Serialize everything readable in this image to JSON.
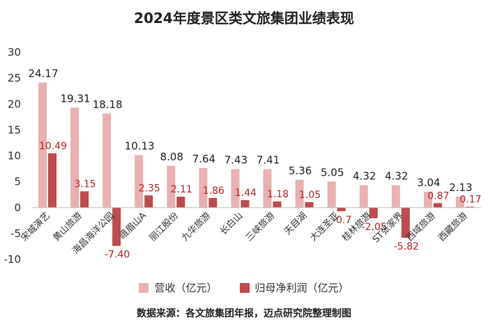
{
  "chart_data": {
    "type": "bar",
    "title": "2024年度景区类文旅集团业绩表现",
    "categories": [
      "宋城演艺",
      "黄山旅游",
      "海昌海洋公园",
      "峨眉山A",
      "丽江股份",
      "九华旅游",
      "长白山",
      "三峡旅游",
      "天目湖",
      "大连圣亚",
      "桂林旅游",
      "ST张家界",
      "西域旅游",
      "西藏旅游"
    ],
    "series": [
      {
        "name": "营收（亿元）",
        "color": "#eab0b0",
        "values": [
          24.17,
          19.31,
          18.18,
          10.13,
          8.08,
          7.64,
          7.43,
          7.41,
          5.36,
          5.05,
          4.32,
          4.32,
          3.04,
          2.13
        ]
      },
      {
        "name": "归母净利润（亿元）",
        "color": "#c0494b",
        "values": [
          10.49,
          3.15,
          -7.4,
          2.35,
          2.11,
          1.86,
          1.44,
          1.18,
          1.05,
          -0.7,
          -2.05,
          -5.82,
          0.87,
          0.17
        ]
      }
    ],
    "value_labels": [
      [
        "24.17",
        "19.31",
        "18.18",
        "10.13",
        "8.08",
        "7.64",
        "7.43",
        "7.41",
        "5.36",
        "5.05",
        "4.32",
        "4.32",
        "3.04",
        "2.13"
      ],
      [
        "10.49",
        "3.15",
        "-7.40",
        "2.35",
        "2.11",
        "1.86",
        "1.44",
        "1.18",
        "1.05",
        "-0.7",
        "-2.05",
        "-5.82",
        "0.87",
        "0.17"
      ]
    ],
    "ylim": [
      -10,
      30
    ],
    "yticks": [
      -10,
      -5,
      0,
      5,
      10,
      15,
      20,
      25,
      30
    ],
    "grid": false,
    "legend": "bottom-center"
  },
  "source_note": "数据来源：各文旅集团年报，迈点研究院整理制图"
}
